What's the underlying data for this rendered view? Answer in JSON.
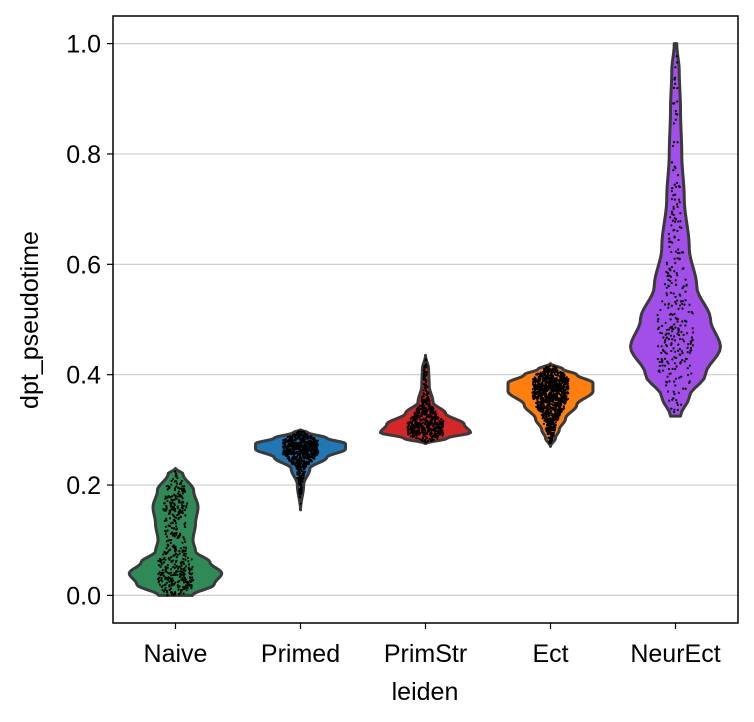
{
  "chart_data": {
    "type": "violin",
    "xlabel": "leiden",
    "ylabel": "dpt_pseudotime",
    "ylim": [
      -0.05,
      1.05
    ],
    "yticks": [
      0.0,
      0.2,
      0.4,
      0.6,
      0.8,
      1.0
    ],
    "ytick_labels": [
      "0.0",
      "0.2",
      "0.4",
      "0.6",
      "0.8",
      "1.0"
    ],
    "grid": "horizontal",
    "categories": [
      "Naive",
      "Primed",
      "PrimStr",
      "Ect",
      "NeurEct"
    ],
    "series": [
      {
        "category": "Naive",
        "color": "#2e8b57",
        "min": 0.0,
        "max": 0.23,
        "density": [
          [
            0.0,
            0.27
          ],
          [
            0.02,
            0.62
          ],
          [
            0.04,
            0.74
          ],
          [
            0.06,
            0.55
          ],
          [
            0.08,
            0.32
          ],
          [
            0.1,
            0.28
          ],
          [
            0.13,
            0.32
          ],
          [
            0.16,
            0.36
          ],
          [
            0.19,
            0.29
          ],
          [
            0.22,
            0.12
          ],
          [
            0.23,
            0.0
          ]
        ],
        "point_count": 450
      },
      {
        "category": "Primed",
        "color": "#1f77b4",
        "min": 0.155,
        "max": 0.3,
        "density": [
          [
            0.155,
            0.0
          ],
          [
            0.2,
            0.05
          ],
          [
            0.23,
            0.15
          ],
          [
            0.25,
            0.42
          ],
          [
            0.265,
            0.72
          ],
          [
            0.275,
            0.72
          ],
          [
            0.285,
            0.42
          ],
          [
            0.295,
            0.12
          ],
          [
            0.3,
            0.0
          ]
        ],
        "point_count": 750
      },
      {
        "category": "PrimStr",
        "color": "#d62728",
        "min": 0.275,
        "max": 0.435,
        "density": [
          [
            0.275,
            0.0
          ],
          [
            0.285,
            0.35
          ],
          [
            0.295,
            0.72
          ],
          [
            0.31,
            0.62
          ],
          [
            0.33,
            0.32
          ],
          [
            0.35,
            0.12
          ],
          [
            0.38,
            0.06
          ],
          [
            0.41,
            0.05
          ],
          [
            0.435,
            0.0
          ]
        ],
        "point_count": 550
      },
      {
        "category": "Ect",
        "color": "#ff7f0e",
        "min": 0.27,
        "max": 0.42,
        "density": [
          [
            0.27,
            0.0
          ],
          [
            0.285,
            0.08
          ],
          [
            0.3,
            0.14
          ],
          [
            0.32,
            0.24
          ],
          [
            0.345,
            0.42
          ],
          [
            0.37,
            0.68
          ],
          [
            0.385,
            0.68
          ],
          [
            0.4,
            0.42
          ],
          [
            0.41,
            0.2
          ],
          [
            0.42,
            0.0
          ]
        ],
        "point_count": 1100
      },
      {
        "category": "NeurEct",
        "color": "#a24ee8",
        "min": 0.325,
        "max": 1.0,
        "density": [
          [
            0.325,
            0.08
          ],
          [
            0.36,
            0.22
          ],
          [
            0.4,
            0.48
          ],
          [
            0.45,
            0.72
          ],
          [
            0.5,
            0.56
          ],
          [
            0.56,
            0.34
          ],
          [
            0.63,
            0.22
          ],
          [
            0.72,
            0.14
          ],
          [
            0.8,
            0.1
          ],
          [
            0.88,
            0.08
          ],
          [
            0.95,
            0.06
          ],
          [
            1.0,
            0.02
          ]
        ],
        "point_count": 300
      }
    ]
  }
}
